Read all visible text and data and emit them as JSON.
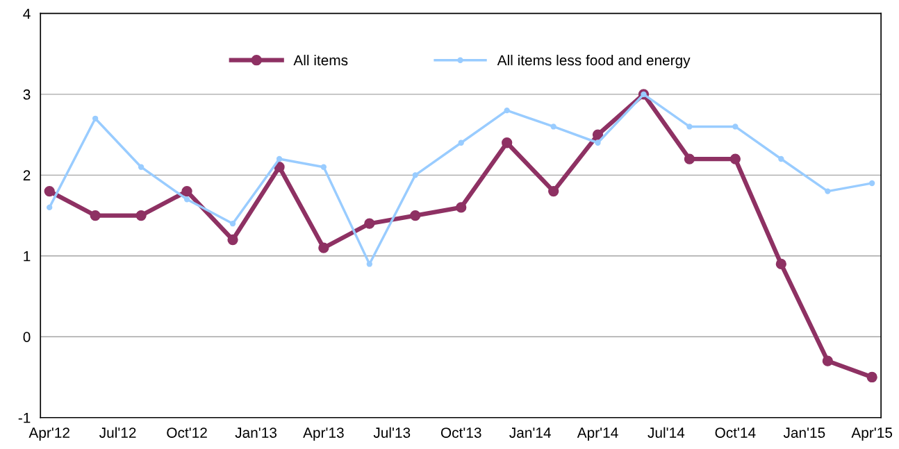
{
  "chart_data": {
    "type": "line",
    "x": [
      "2012-04",
      "2012-06",
      "2012-08",
      "2012-10",
      "2012-12",
      "2013-02",
      "2013-04",
      "2013-06",
      "2013-08",
      "2013-10",
      "2013-12",
      "2014-02",
      "2014-04",
      "2014-06",
      "2014-08",
      "2014-10",
      "2014-12",
      "2015-02",
      "2015-04"
    ],
    "series": [
      {
        "name": "All items",
        "color": "#8e3163",
        "values": [
          1.8,
          1.5,
          1.5,
          1.8,
          1.2,
          2.1,
          1.1,
          1.4,
          1.5,
          1.6,
          2.4,
          1.8,
          2.5,
          3.0,
          2.2,
          2.2,
          0.9,
          -0.3,
          -0.5
        ]
      },
      {
        "name": "All items less food and energy",
        "color": "#99ccff",
        "values": [
          1.6,
          2.7,
          2.1,
          1.7,
          1.4,
          2.2,
          2.1,
          0.9,
          2.0,
          2.4,
          2.8,
          2.6,
          2.4,
          3.0,
          2.6,
          2.6,
          2.2,
          1.8,
          1.9
        ]
      }
    ],
    "xlim": [
      "2012-03-20",
      "2015-04-13"
    ],
    "xticks": [
      {
        "value": "2012-04",
        "label": "Apr'12"
      },
      {
        "value": "2012-07",
        "label": "Jul'12"
      },
      {
        "value": "2012-10",
        "label": "Oct'12"
      },
      {
        "value": "2013-01",
        "label": "Jan'13"
      },
      {
        "value": "2013-04",
        "label": "Apr'13"
      },
      {
        "value": "2013-07",
        "label": "Jul'13"
      },
      {
        "value": "2013-10",
        "label": "Oct'13"
      },
      {
        "value": "2014-01",
        "label": "Jan'14"
      },
      {
        "value": "2014-04",
        "label": "Apr'14"
      },
      {
        "value": "2014-07",
        "label": "Jul'14"
      },
      {
        "value": "2014-10",
        "label": "Oct'14"
      },
      {
        "value": "2015-01",
        "label": "Jan'15"
      },
      {
        "value": "2015-04",
        "label": "Apr'15"
      }
    ],
    "ylim": [
      -1,
      4
    ],
    "yticks": [
      -1,
      0,
      1,
      2,
      3,
      4
    ],
    "grid": "y",
    "legend": "top",
    "marker": "circle",
    "line_style": "solid"
  }
}
